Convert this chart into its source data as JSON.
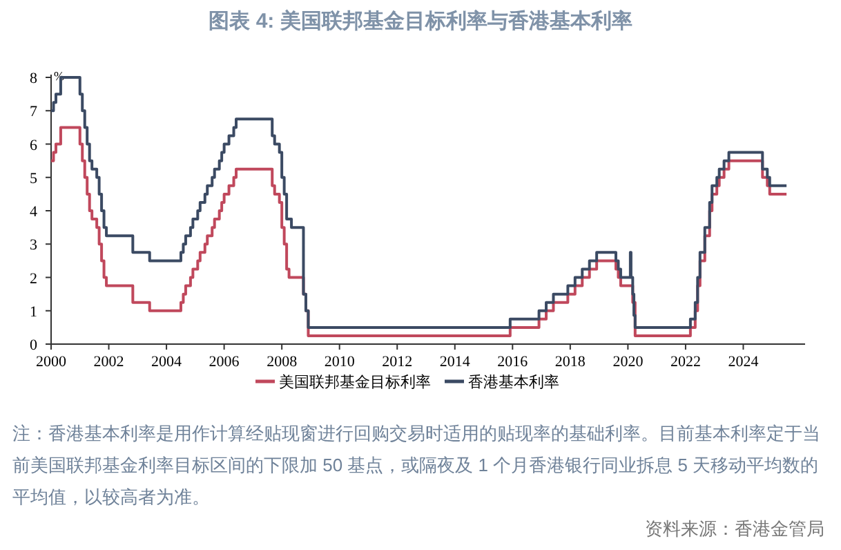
{
  "chart_data": {
    "type": "step",
    "title": "图表 4:  美国联邦基金目标利率与香港基本利率",
    "ylabel": "%",
    "xlim": [
      "2000-01",
      "2026-01"
    ],
    "xticks": [
      "2000",
      "2002",
      "2004",
      "2006",
      "2008",
      "2010",
      "2012",
      "2014",
      "2016",
      "2018",
      "2020",
      "2022",
      "2024"
    ],
    "ylim": [
      0,
      8
    ],
    "yticks": [
      0,
      1,
      2,
      3,
      4,
      5,
      6,
      7,
      8
    ],
    "grid": false,
    "legend": "bottom",
    "line_style": "solid",
    "marker": "none",
    "series": [
      {
        "name": "美国联邦基金目标利率",
        "color": "#c0485c",
        "x": [
          "2000-01",
          "2000-02",
          "2000-03",
          "2000-05",
          "2001-01",
          "2001-02",
          "2001-03",
          "2001-04",
          "2001-05",
          "2001-06",
          "2001-08",
          "2001-09",
          "2001-10",
          "2001-11",
          "2001-12",
          "2002-11",
          "2003-06",
          "2004-07",
          "2004-08",
          "2004-09",
          "2004-11",
          "2004-12",
          "2005-02",
          "2005-03",
          "2005-05",
          "2005-06",
          "2005-08",
          "2005-09",
          "2005-11",
          "2005-12",
          "2006-01",
          "2006-03",
          "2006-05",
          "2006-06",
          "2007-09",
          "2007-10",
          "2007-12",
          "2008-01",
          "2008-02",
          "2008-03",
          "2008-04",
          "2008-10",
          "2008-11",
          "2008-12",
          "2015-12",
          "2016-12",
          "2017-03",
          "2017-06",
          "2017-12",
          "2018-03",
          "2018-06",
          "2018-09",
          "2018-12",
          "2019-08",
          "2019-09",
          "2019-10",
          "2020-03",
          "2020-04",
          "2022-03",
          "2022-05",
          "2022-06",
          "2022-07",
          "2022-09",
          "2022-11",
          "2022-12",
          "2023-02",
          "2023-03",
          "2023-05",
          "2023-07",
          "2024-09",
          "2024-11",
          "2024-12",
          "2025-07"
        ],
        "values": [
          5.5,
          5.75,
          6.0,
          6.5,
          6.0,
          5.5,
          5.0,
          4.5,
          4.0,
          3.75,
          3.5,
          3.0,
          2.5,
          2.0,
          1.75,
          1.25,
          1.0,
          1.25,
          1.5,
          1.75,
          2.0,
          2.25,
          2.5,
          2.75,
          3.0,
          3.25,
          3.5,
          3.75,
          4.0,
          4.25,
          4.5,
          4.75,
          5.0,
          5.25,
          4.75,
          4.5,
          4.25,
          3.5,
          3.0,
          2.25,
          2.0,
          1.5,
          1.0,
          0.25,
          0.5,
          0.75,
          1.0,
          1.25,
          1.5,
          1.75,
          2.0,
          2.25,
          2.5,
          2.25,
          2.0,
          1.75,
          1.25,
          0.25,
          0.5,
          1.0,
          1.75,
          2.5,
          3.25,
          4.0,
          4.5,
          4.75,
          5.0,
          5.25,
          5.5,
          5.0,
          4.75,
          4.5,
          4.5
        ]
      },
      {
        "name": "香港基本利率",
        "color": "#3b4a63",
        "x": [
          "2000-01",
          "2000-02",
          "2000-03",
          "2000-05",
          "2001-01",
          "2001-02",
          "2001-03",
          "2001-04",
          "2001-05",
          "2001-06",
          "2001-08",
          "2001-09",
          "2001-10",
          "2001-11",
          "2001-12",
          "2002-11",
          "2003-06",
          "2004-07",
          "2004-08",
          "2004-09",
          "2004-11",
          "2004-12",
          "2005-02",
          "2005-03",
          "2005-05",
          "2005-06",
          "2005-08",
          "2005-09",
          "2005-11",
          "2005-12",
          "2006-01",
          "2006-03",
          "2006-05",
          "2006-06",
          "2007-09",
          "2007-10",
          "2007-12",
          "2008-01",
          "2008-02",
          "2008-03",
          "2008-05",
          "2008-10",
          "2008-11",
          "2008-12",
          "2015-12",
          "2016-12",
          "2017-03",
          "2017-06",
          "2017-12",
          "2018-03",
          "2018-06",
          "2018-09",
          "2018-12",
          "2019-08",
          "2019-09",
          "2019-10",
          "2020-01",
          "2020-02",
          "2020-02-10",
          "2020-03",
          "2020-03-16",
          "2020-04",
          "2022-03",
          "2022-05",
          "2022-06",
          "2022-07",
          "2022-09",
          "2022-11",
          "2022-12",
          "2023-02",
          "2023-03",
          "2023-05",
          "2023-07",
          "2024-09",
          "2024-11",
          "2024-12",
          "2025-07"
        ],
        "values": [
          7.0,
          7.25,
          7.5,
          8.0,
          7.5,
          7.0,
          6.5,
          6.0,
          5.5,
          5.25,
          5.0,
          4.5,
          4.0,
          3.5,
          3.25,
          2.75,
          2.5,
          2.75,
          3.0,
          3.25,
          3.5,
          3.75,
          4.0,
          4.25,
          4.5,
          4.75,
          5.0,
          5.25,
          5.5,
          5.75,
          6.0,
          6.25,
          6.5,
          6.75,
          6.25,
          6.0,
          5.75,
          5.0,
          4.5,
          3.75,
          3.5,
          1.5,
          1.0,
          0.5,
          0.75,
          1.0,
          1.25,
          1.5,
          1.75,
          2.0,
          2.25,
          2.5,
          2.75,
          2.5,
          2.25,
          2.0,
          2.0,
          2.75,
          2.0,
          1.5,
          0.86,
          0.5,
          0.75,
          1.25,
          2.0,
          2.75,
          3.5,
          4.25,
          4.75,
          5.0,
          5.25,
          5.5,
          5.75,
          5.25,
          5.0,
          4.75,
          4.75
        ]
      }
    ],
    "annotations": [
      "注：香港基本利率是用作计算经贴现窗进行回购交易时适用的贴现率的基础利率。目前基本利率定于当前美国联邦基金利率目标区间的下限加 50 基点，或隔夜及 1 个月香港银行同业拆息 5 天移动平均数的平均值，以较高者为准。",
      "资料来源：香港金管局"
    ]
  }
}
